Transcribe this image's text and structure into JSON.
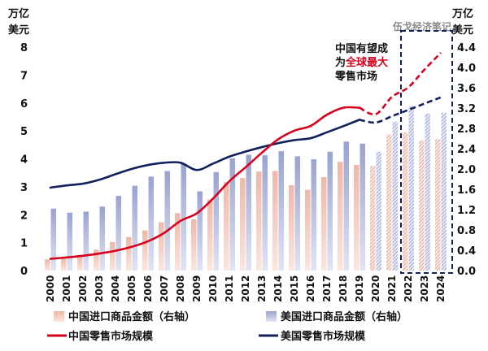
{
  "chart_data": {
    "type": "bar",
    "categories": [
      "2000",
      "2001",
      "2002",
      "2003",
      "2004",
      "2005",
      "2006",
      "2007",
      "2008",
      "2009",
      "2010",
      "2011",
      "2012",
      "2013",
      "2014",
      "2015",
      "2016",
      "2017",
      "2018",
      "2019",
      "2020",
      "2021",
      "2022",
      "2023",
      "2024"
    ],
    "left_axis": {
      "label_line1": "万亿",
      "label_line2": "美元",
      "ylim": [
        0,
        8
      ],
      "ticks": [
        "0",
        "1",
        "2",
        "3",
        "4",
        "5",
        "6",
        "7",
        "8"
      ]
    },
    "right_axis": {
      "label_line1": "万亿",
      "label_line2": "美元",
      "ylim": [
        0,
        4.4
      ],
      "ticks": [
        "0.0",
        "0.4",
        "0.8",
        "1.2",
        "1.6",
        "2.0",
        "2.4",
        "2.8",
        "3.2",
        "3.6",
        "4.0",
        "4.4"
      ]
    },
    "forecast_from": "2020",
    "series": [
      {
        "name": "中国进口商品金额（右轴）",
        "kind": "bar",
        "axis": "right",
        "color": "#e8a08c",
        "values": [
          0.22,
          0.24,
          0.29,
          0.41,
          0.56,
          0.66,
          0.79,
          0.95,
          1.13,
          1.01,
          1.4,
          1.74,
          1.82,
          1.95,
          1.96,
          1.68,
          1.59,
          1.84,
          2.14,
          2.08,
          2.06,
          2.68,
          2.72,
          2.56,
          2.59
        ]
      },
      {
        "name": "美国进口商品金额（右轴）",
        "kind": "bar",
        "axis": "right",
        "color": "#a4acd4",
        "values": [
          1.22,
          1.14,
          1.16,
          1.26,
          1.47,
          1.67,
          1.85,
          1.96,
          2.1,
          1.56,
          1.94,
          2.21,
          2.28,
          2.27,
          2.35,
          2.25,
          2.19,
          2.34,
          2.54,
          2.5,
          2.34,
          2.93,
          3.24,
          3.09,
          3.11
        ]
      },
      {
        "name": "中国零售市场规模",
        "kind": "line",
        "axis": "left",
        "color": "#d6001c",
        "values": [
          0.42,
          0.47,
          0.53,
          0.61,
          0.71,
          0.85,
          1.05,
          1.35,
          1.78,
          2.05,
          2.58,
          3.2,
          3.7,
          4.22,
          4.7,
          5.01,
          5.18,
          5.58,
          5.83,
          5.83,
          5.6,
          6.22,
          6.56,
          7.2,
          7.8
        ]
      },
      {
        "name": "美国零售市场规模",
        "kind": "line",
        "axis": "left",
        "color": "#12205c",
        "values": [
          2.97,
          3.05,
          3.11,
          3.25,
          3.45,
          3.64,
          3.78,
          3.86,
          3.86,
          3.6,
          3.83,
          4.08,
          4.26,
          4.42,
          4.56,
          4.67,
          4.74,
          4.95,
          5.17,
          5.4,
          5.3,
          5.53,
          5.75,
          5.98,
          6.2
        ]
      }
    ],
    "annotation": {
      "line1": "中国有望成",
      "line2_prefix": "为",
      "line2_highlight": "全球最大",
      "line3": "零售市场"
    },
    "watermark": "伍戈经济笔记",
    "legend_position": "bottom"
  }
}
